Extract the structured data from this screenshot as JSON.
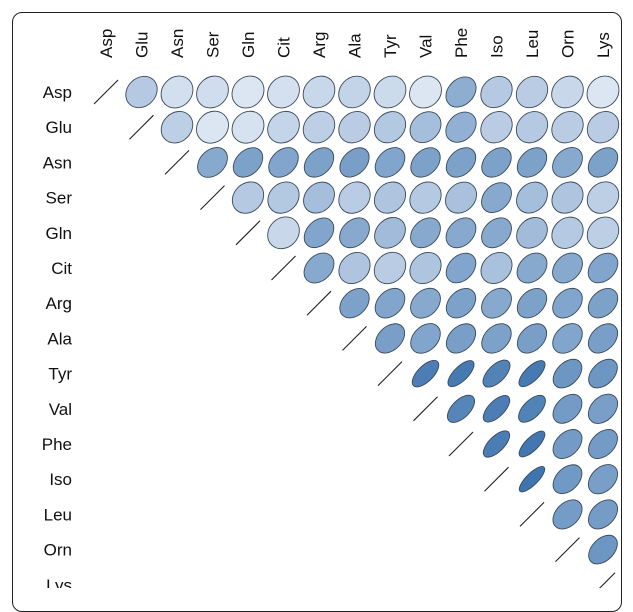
{
  "chart_data": {
    "type": "heatmap",
    "subtype": "correlation-ellipse-upper-triangle",
    "title": "",
    "variables": [
      "Asp",
      "Glu",
      "Asn",
      "Ser",
      "Gln",
      "Cit",
      "Arg",
      "Ala",
      "Tyr",
      "Val",
      "Phe",
      "Iso",
      "Leu",
      "Orn",
      "Lys"
    ],
    "value_range": [
      0,
      1
    ],
    "diagonal_value": 1,
    "color_scale": [
      "#f4f7fd",
      "#2e69a8"
    ],
    "outline_color": "#3a4a5a",
    "rows": [
      [
        1.0,
        0.32,
        0.17,
        0.18,
        0.12,
        0.16,
        0.22,
        0.25,
        0.2,
        0.12,
        0.52,
        0.32,
        0.3,
        0.22,
        0.12
      ],
      [
        null,
        1.0,
        0.28,
        0.12,
        0.15,
        0.24,
        0.28,
        0.3,
        0.33,
        0.4,
        0.5,
        0.3,
        0.32,
        0.3,
        0.3
      ],
      [
        null,
        null,
        1.0,
        0.55,
        0.6,
        0.58,
        0.6,
        0.62,
        0.58,
        0.6,
        0.6,
        0.6,
        0.6,
        0.55,
        0.6
      ],
      [
        null,
        null,
        null,
        1.0,
        0.32,
        0.33,
        0.4,
        0.3,
        0.35,
        0.32,
        0.38,
        0.55,
        0.4,
        0.35,
        0.28
      ],
      [
        null,
        null,
        null,
        null,
        1.0,
        0.22,
        0.58,
        0.55,
        0.42,
        0.55,
        0.55,
        0.55,
        0.42,
        0.32,
        0.28
      ],
      [
        null,
        null,
        null,
        null,
        null,
        1.0,
        0.55,
        0.35,
        0.3,
        0.35,
        0.58,
        0.38,
        0.55,
        0.55,
        0.58
      ],
      [
        null,
        null,
        null,
        null,
        null,
        null,
        1.0,
        0.6,
        0.58,
        0.55,
        0.6,
        0.55,
        0.6,
        0.58,
        0.6
      ],
      [
        null,
        null,
        null,
        null,
        null,
        null,
        null,
        1.0,
        0.62,
        0.58,
        0.62,
        0.6,
        0.62,
        0.58,
        0.62
      ],
      [
        null,
        null,
        null,
        null,
        null,
        null,
        null,
        null,
        1.0,
        0.85,
        0.88,
        0.82,
        0.88,
        0.68,
        0.68
      ],
      [
        null,
        null,
        null,
        null,
        null,
        null,
        null,
        null,
        null,
        1.0,
        0.8,
        0.85,
        0.82,
        0.65,
        0.62
      ],
      [
        null,
        null,
        null,
        null,
        null,
        null,
        null,
        null,
        null,
        null,
        1.0,
        0.86,
        0.9,
        0.65,
        0.65
      ],
      [
        null,
        null,
        null,
        null,
        null,
        null,
        null,
        null,
        null,
        null,
        null,
        1.0,
        0.92,
        0.66,
        0.62
      ],
      [
        null,
        null,
        null,
        null,
        null,
        null,
        null,
        null,
        null,
        null,
        null,
        null,
        1.0,
        0.64,
        0.64
      ],
      [
        null,
        null,
        null,
        null,
        null,
        null,
        null,
        null,
        null,
        null,
        null,
        null,
        null,
        1.0,
        0.68
      ],
      [
        null,
        null,
        null,
        null,
        null,
        null,
        null,
        null,
        null,
        null,
        null,
        null,
        null,
        null,
        1.0
      ]
    ],
    "grid": false,
    "legend": "none"
  }
}
